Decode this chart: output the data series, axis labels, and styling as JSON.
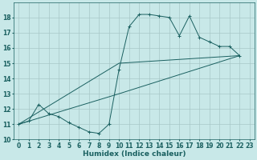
{
  "xlabel": "Humidex (Indice chaleur)",
  "bg_color": "#c8e8e8",
  "grid_color": "#a8c8c8",
  "line_color": "#1a6060",
  "line1_x": [
    0,
    1,
    2,
    3,
    4,
    5,
    6,
    7,
    8,
    9,
    10,
    11,
    12,
    13,
    14,
    15,
    16,
    17,
    18,
    19,
    20,
    21,
    22
  ],
  "line1_y": [
    11.0,
    11.2,
    12.3,
    11.7,
    11.5,
    11.1,
    10.8,
    10.5,
    10.4,
    11.0,
    14.6,
    17.4,
    18.2,
    18.2,
    18.1,
    18.0,
    16.8,
    18.1,
    16.7,
    16.4,
    16.1,
    16.1,
    15.5
  ],
  "line2_x": [
    0,
    10,
    22
  ],
  "line2_y": [
    11.0,
    13.0,
    15.5
  ],
  "line3_x": [
    0,
    10,
    22
  ],
  "line3_y": [
    11.0,
    15.0,
    15.5
  ],
  "xlim": [
    -0.5,
    23.5
  ],
  "ylim": [
    10,
    19
  ],
  "yticks": [
    10,
    11,
    12,
    13,
    14,
    15,
    16,
    17,
    18
  ],
  "xticks": [
    0,
    1,
    2,
    3,
    4,
    5,
    6,
    7,
    8,
    9,
    10,
    11,
    12,
    13,
    14,
    15,
    16,
    17,
    18,
    19,
    20,
    21,
    22,
    23
  ],
  "xlabel_fontsize": 6.5,
  "tick_fontsize": 5.5
}
